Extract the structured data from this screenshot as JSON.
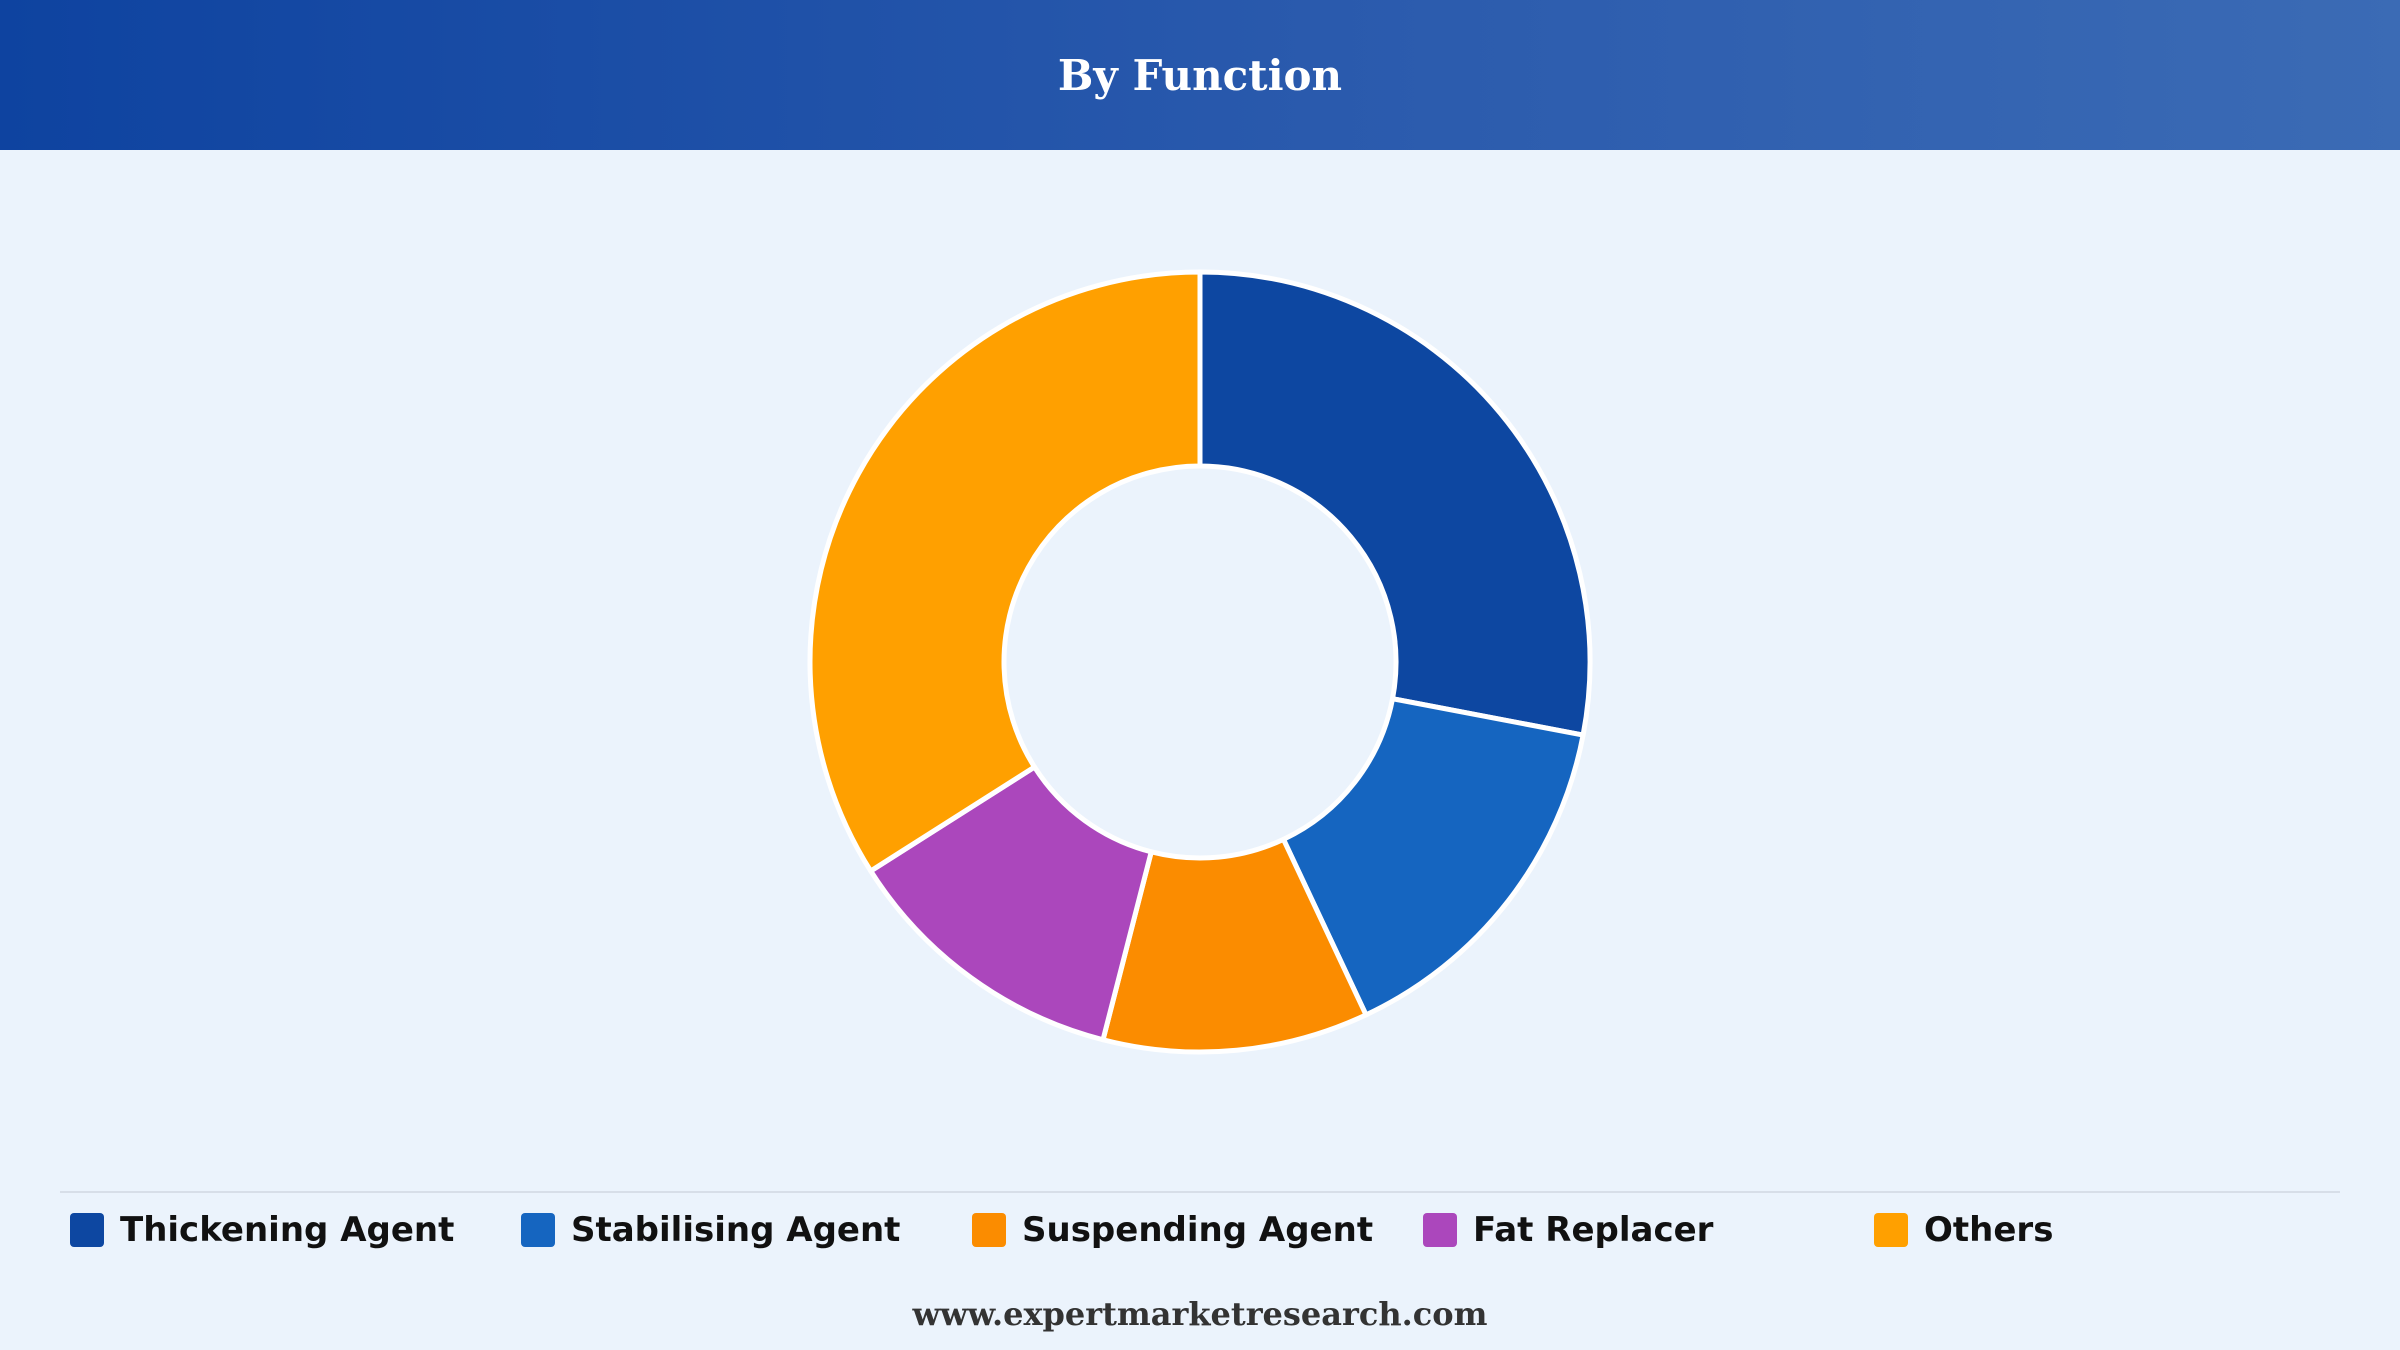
{
  "header": {
    "title": "By Function"
  },
  "chart_data": {
    "type": "pie",
    "donut": true,
    "title": "By Function",
    "categories": [
      "Thickening Agent",
      "Stabilising Agent",
      "Suspending Agent",
      "Fat Replacer",
      "Others"
    ],
    "values": [
      28,
      15,
      11,
      12,
      34
    ],
    "colors": [
      "#0d47a1",
      "#1565c0",
      "#fb8c00",
      "#ab47bc",
      "#ffa000"
    ],
    "start_angle_deg": 0,
    "direction": "clockwise",
    "legend_position": "bottom",
    "slice_border_color": "#ffffff"
  },
  "footer": {
    "website": "www.expertmarketresearch.com"
  }
}
